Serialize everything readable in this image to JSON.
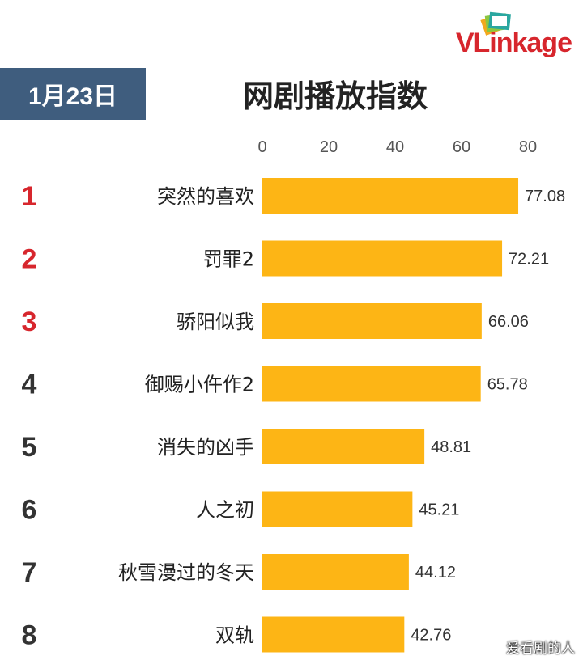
{
  "header": {
    "date": "1月23日",
    "title": "网剧播放指数",
    "logo_text": "VLinkage"
  },
  "watermark": "爱看剧的人",
  "colors": {
    "bar": "#FDB515",
    "date_box": "#3F5D7E",
    "top_rank": "#D7262D",
    "rank": "#333333"
  },
  "chart_data": {
    "type": "bar",
    "orientation": "horizontal",
    "title": "网剧播放指数",
    "xlim": [
      0,
      80
    ],
    "ticks": [
      0,
      20,
      40,
      60,
      80
    ],
    "ranks": [
      "1",
      "2",
      "3",
      "4",
      "5",
      "6",
      "7",
      "8"
    ],
    "categories": [
      "突然的喜欢",
      "罚罪2",
      "骄阳似我",
      "御赐小仵作2",
      "消失的凶手",
      "人之初",
      "秋雪漫过的冬天",
      "双轨"
    ],
    "values": [
      77.08,
      72.21,
      66.06,
      65.78,
      48.81,
      45.21,
      44.12,
      42.76
    ],
    "data_labels": [
      "77.08",
      "72.21",
      "66.06",
      "65.78",
      "48.81",
      "45.21",
      "44.12",
      "42.76"
    ],
    "grid": false,
    "legend": "none"
  }
}
